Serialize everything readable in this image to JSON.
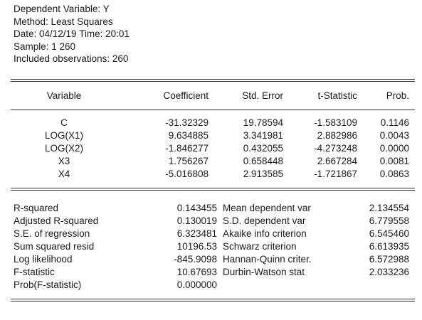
{
  "header": {
    "dependent": "Dependent Variable: Y",
    "method": "Method: Least Squares",
    "datetime": "Date: 04/12/19   Time: 20:01",
    "sample": "Sample: 1 260",
    "observations": "Included observations: 260"
  },
  "columns": [
    "Variable",
    "Coefficient",
    "Std. Error",
    "t-Statistic",
    "Prob."
  ],
  "rows": [
    [
      "C",
      "-31.32329",
      "19.78594",
      "-1.583109",
      "0.1146"
    ],
    [
      "LOG(X1)",
      "9.634885",
      "3.341981",
      "2.882986",
      "0.0043"
    ],
    [
      "LOG(X2)",
      "-1.846277",
      "0.432055",
      "-4.273248",
      "0.0000"
    ],
    [
      "X3",
      "1.756267",
      "0.658448",
      "2.667284",
      "0.0081"
    ],
    [
      "X4",
      "-5.016808",
      "2.913585",
      "-1.721867",
      "0.0863"
    ]
  ],
  "stats": [
    [
      "R-squared",
      "0.143455",
      "Mean dependent var",
      "2.134554"
    ],
    [
      "Adjusted R-squared",
      "0.130019",
      "S.D. dependent var",
      "6.779558"
    ],
    [
      "S.E. of regression",
      "6.323481",
      "Akaike info criterion",
      "6.545460"
    ],
    [
      "Sum squared resid",
      "10196.53",
      "Schwarz criterion",
      "6.613935"
    ],
    [
      "Log likelihood",
      "-845.9098",
      "Hannan-Quinn criter.",
      "6.572988"
    ],
    [
      "F-statistic",
      "10.67693",
      "Durbin-Watson stat",
      "2.033236"
    ],
    [
      "Prob(F-statistic)",
      "0.000000",
      "",
      ""
    ]
  ]
}
